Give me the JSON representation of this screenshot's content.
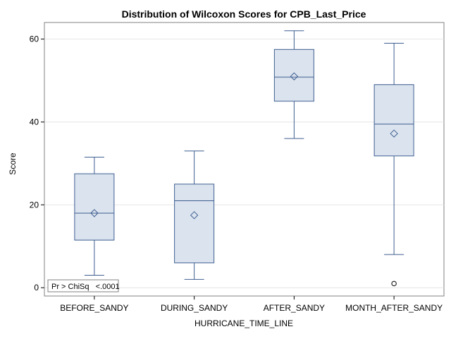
{
  "chart_data": {
    "type": "box",
    "title": "Distribution of Wilcoxon Scores for CPB_Last_Price",
    "xlabel": "HURRICANE_TIME_LINE",
    "ylabel": "Score",
    "ylim": [
      -2,
      64
    ],
    "yticks": [
      0,
      20,
      40,
      60
    ],
    "grid": true,
    "categories": [
      "BEFORE_SANDY",
      "DURING_SANDY",
      "AFTER_SANDY",
      "MONTH_AFTER_SANDY"
    ],
    "boxes": [
      {
        "whisker_low": 3,
        "q1": 11.5,
        "median": 18,
        "q3": 27.5,
        "whisker_high": 31.5,
        "mean": 18,
        "outliers": []
      },
      {
        "whisker_low": 2,
        "q1": 6,
        "median": 21,
        "q3": 25,
        "whisker_high": 33,
        "mean": 17.5,
        "outliers": []
      },
      {
        "whisker_low": 36,
        "q1": 45,
        "median": 50.8,
        "q3": 57.5,
        "whisker_high": 62,
        "mean": 51,
        "outliers": []
      },
      {
        "whisker_low": 8,
        "q1": 31.8,
        "median": 39.5,
        "q3": 49,
        "whisker_high": 59,
        "mean": 37.2,
        "outliers": [
          1
        ]
      }
    ],
    "inset": "Pr > ChiSq   <.0001",
    "colors": {
      "box_fill": "#dbe3ee",
      "line": "#3f5f91",
      "grid": "#e4e4e4",
      "frame": "#808080"
    }
  }
}
